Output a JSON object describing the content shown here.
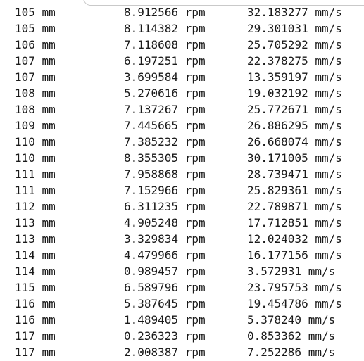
{
  "console": {
    "rows": [
      {
        "length": "105 mm",
        "rpm": "8.912566 rpm",
        "speed": "32.183277 mm/s"
      },
      {
        "length": "105 mm",
        "rpm": "8.114382 rpm",
        "speed": "29.301031 mm/s"
      },
      {
        "length": "106 mm",
        "rpm": "7.118608 rpm",
        "speed": "25.705292 mm/s"
      },
      {
        "length": "107 mm",
        "rpm": "6.197251 rpm",
        "speed": "22.378275 mm/s"
      },
      {
        "length": "107 mm",
        "rpm": "3.699584 rpm",
        "speed": "13.359197 mm/s"
      },
      {
        "length": "108 mm",
        "rpm": "5.270616 rpm",
        "speed": "19.032192 mm/s"
      },
      {
        "length": "108 mm",
        "rpm": "7.137267 rpm",
        "speed": "25.772671 mm/s"
      },
      {
        "length": "109 mm",
        "rpm": "7.445665 rpm",
        "speed": "26.886295 mm/s"
      },
      {
        "length": "110 mm",
        "rpm": "7.385232 rpm",
        "speed": "26.668074 mm/s"
      },
      {
        "length": "110 mm",
        "rpm": "8.355305 rpm",
        "speed": "30.171005 mm/s"
      },
      {
        "length": "111 mm",
        "rpm": "7.958868 rpm",
        "speed": "28.739471 mm/s"
      },
      {
        "length": "111 mm",
        "rpm": "7.152966 rpm",
        "speed": "25.829361 mm/s"
      },
      {
        "length": "112 mm",
        "rpm": "6.311235 rpm",
        "speed": "22.789871 mm/s"
      },
      {
        "length": "113 mm",
        "rpm": "4.905248 rpm",
        "speed": "17.712851 mm/s"
      },
      {
        "length": "113 mm",
        "rpm": "3.329834 rpm",
        "speed": "12.024032 mm/s"
      },
      {
        "length": "114 mm",
        "rpm": "4.479966 rpm",
        "speed": "16.177156 mm/s"
      },
      {
        "length": "114 mm",
        "rpm": "0.989457 rpm",
        "speed": "3.572931 mm/s"
      },
      {
        "length": "115 mm",
        "rpm": "6.589796 rpm",
        "speed": "23.795753 mm/s"
      },
      {
        "length": "116 mm",
        "rpm": "5.387645 rpm",
        "speed": "19.454786 mm/s"
      },
      {
        "length": "116 mm",
        "rpm": "1.489405 rpm",
        "speed": "5.378240 mm/s"
      },
      {
        "length": "117 mm",
        "rpm": "0.236323 rpm",
        "speed": "0.853362 mm/s"
      },
      {
        "length": "117 mm",
        "rpm": "2.008387 rpm",
        "speed": "7.252286 mm/s"
      }
    ]
  }
}
